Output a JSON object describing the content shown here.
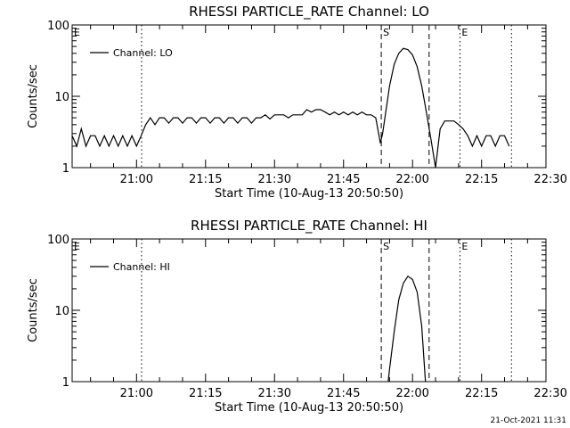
{
  "footer_timestamp": "21-Oct-2021 11:31",
  "chart_data": [
    {
      "type": "line",
      "title": "RHESSI PARTICLE_RATE Channel: LO",
      "xlabel": "Start Time (10-Aug-13 20:50:50)",
      "ylabel": "Counts/sec",
      "yscale": "log",
      "ylim": [
        1,
        100
      ],
      "yticks": [
        {
          "v": 1,
          "label": "1"
        },
        {
          "v": 10,
          "label": "10"
        },
        {
          "v": 100,
          "label": "100"
        }
      ],
      "xlim_min": [
        0,
        103
      ],
      "xticks": [
        {
          "v": 14,
          "label": "21:00"
        },
        {
          "v": 29,
          "label": "21:15"
        },
        {
          "v": 44,
          "label": "21:30"
        },
        {
          "v": 59,
          "label": "21:45"
        },
        {
          "v": 74,
          "label": "22:00"
        },
        {
          "v": 89,
          "label": "22:15"
        },
        {
          "v": 104,
          "label": "22:30"
        }
      ],
      "legend": {
        "label": "Channel: LO",
        "position": "top-left"
      },
      "markers": [
        {
          "x": 0,
          "label": "E",
          "style": "dotted"
        },
        {
          "x": 15.1,
          "label": "",
          "style": "dotted"
        },
        {
          "x": 67.2,
          "label": "S",
          "style": "dashed"
        },
        {
          "x": 77.6,
          "label": "",
          "style": "dashed"
        },
        {
          "x": 84.3,
          "label": "E",
          "style": "dotted"
        },
        {
          "x": 95.5,
          "label": "",
          "style": "dotted"
        }
      ],
      "series": [
        {
          "name": "Channel: LO",
          "x": [
            0,
            1,
            2,
            3,
            4,
            5,
            6,
            7,
            8,
            9,
            10,
            11,
            12,
            13,
            14,
            15,
            16,
            17,
            18,
            19,
            20,
            21,
            22,
            23,
            24,
            25,
            26,
            27,
            28,
            29,
            30,
            31,
            32,
            33,
            34,
            35,
            36,
            37,
            38,
            39,
            40,
            41,
            42,
            43,
            44,
            45,
            46,
            47,
            48,
            49,
            50,
            51,
            52,
            53,
            54,
            55,
            56,
            57,
            58,
            59,
            60,
            61,
            62,
            63,
            64,
            65,
            66,
            67,
            67.5,
            68,
            69,
            70,
            71,
            72,
            73,
            74,
            75,
            76,
            77,
            78,
            79,
            80,
            81,
            82,
            83,
            84,
            85,
            86,
            87,
            88,
            89,
            90,
            91,
            92,
            93,
            94,
            95
          ],
          "y": [
            2.8,
            2.0,
            3.5,
            2.0,
            2.8,
            2.8,
            2.0,
            2.8,
            2.0,
            2.8,
            2.0,
            2.8,
            2.0,
            2.8,
            2.0,
            2.8,
            4.0,
            5.0,
            4.0,
            5.0,
            5.0,
            4.2,
            5.0,
            5.0,
            4.2,
            5.0,
            5.0,
            4.2,
            5.0,
            5.0,
            4.2,
            5.0,
            5.0,
            4.2,
            5.0,
            5.0,
            4.2,
            5.0,
            5.0,
            4.2,
            5.0,
            5.0,
            5.5,
            4.8,
            5.5,
            5.5,
            5.5,
            5.0,
            5.5,
            5.5,
            5.5,
            6.5,
            6.0,
            6.5,
            6.5,
            6.0,
            5.5,
            6.0,
            5.5,
            6.0,
            5.5,
            6.0,
            5.5,
            6.0,
            5.5,
            5.5,
            5.0,
            2.2,
            3.0,
            5.0,
            14,
            28,
            40,
            47,
            45,
            38,
            26,
            14,
            6,
            2.5,
            1.0,
            3.5,
            4.5,
            4.5,
            4.5,
            4.0,
            3.5,
            2.8,
            2.0,
            2.8,
            2.0,
            2.8,
            2.8,
            2.0,
            2.8,
            2.8,
            2.0
          ]
        }
      ]
    },
    {
      "type": "line",
      "title": "RHESSI PARTICLE_RATE Channel: HI",
      "xlabel": "Start Time (10-Aug-13 20:50:50)",
      "ylabel": "Counts/sec",
      "yscale": "log",
      "ylim": [
        1,
        100
      ],
      "yticks": [
        {
          "v": 1,
          "label": "1"
        },
        {
          "v": 10,
          "label": "10"
        },
        {
          "v": 100,
          "label": "100"
        }
      ],
      "xlim_min": [
        0,
        103
      ],
      "xticks": [
        {
          "v": 14,
          "label": "21:00"
        },
        {
          "v": 29,
          "label": "21:15"
        },
        {
          "v": 44,
          "label": "21:30"
        },
        {
          "v": 59,
          "label": "21:45"
        },
        {
          "v": 74,
          "label": "22:00"
        },
        {
          "v": 89,
          "label": "22:15"
        },
        {
          "v": 104,
          "label": "22:30"
        }
      ],
      "legend": {
        "label": "Channel: HI",
        "position": "top-left"
      },
      "markers": [
        {
          "x": 0,
          "label": "E",
          "style": "dotted"
        },
        {
          "x": 15.1,
          "label": "",
          "style": "dotted"
        },
        {
          "x": 67.2,
          "label": "S",
          "style": "dashed"
        },
        {
          "x": 77.6,
          "label": "",
          "style": "dashed"
        },
        {
          "x": 84.3,
          "label": "E",
          "style": "dotted"
        },
        {
          "x": 95.5,
          "label": "",
          "style": "dotted"
        }
      ],
      "series": [
        {
          "name": "Channel: HI",
          "x": [
            68.7,
            69,
            70,
            71,
            72,
            73,
            74,
            75,
            76,
            76.8
          ],
          "y": [
            1.0,
            1.5,
            5,
            14,
            24,
            30,
            27,
            18,
            6,
            1.0
          ]
        }
      ]
    }
  ]
}
